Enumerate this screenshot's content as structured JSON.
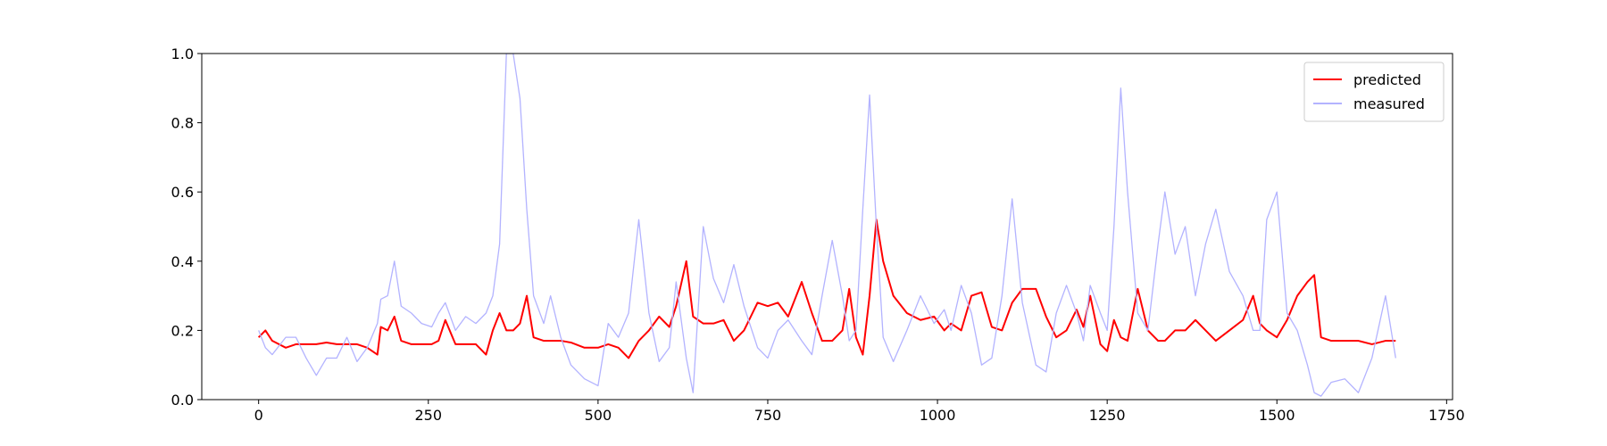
{
  "chart_data": {
    "type": "line",
    "x": [
      0,
      10,
      20,
      40,
      55,
      70,
      85,
      100,
      115,
      130,
      145,
      160,
      175,
      180,
      190,
      200,
      210,
      225,
      240,
      255,
      265,
      275,
      290,
      305,
      320,
      335,
      345,
      355,
      365,
      375,
      385,
      395,
      405,
      420,
      430,
      445,
      460,
      480,
      500,
      515,
      530,
      545,
      560,
      575,
      590,
      605,
      615,
      630,
      640,
      655,
      670,
      685,
      700,
      715,
      735,
      750,
      765,
      780,
      800,
      815,
      830,
      845,
      860,
      870,
      880,
      890,
      900,
      910,
      920,
      935,
      955,
      975,
      995,
      1010,
      1020,
      1035,
      1050,
      1065,
      1080,
      1095,
      1110,
      1125,
      1145,
      1160,
      1175,
      1190,
      1205,
      1215,
      1225,
      1240,
      1250,
      1260,
      1270,
      1280,
      1295,
      1310,
      1325,
      1335,
      1350,
      1365,
      1380,
      1395,
      1410,
      1430,
      1450,
      1465,
      1475,
      1485,
      1500,
      1515,
      1530,
      1545,
      1555,
      1565,
      1580,
      1600,
      1620,
      1640,
      1660,
      1675
    ],
    "series": [
      {
        "name": "predicted",
        "color": "#ff0000",
        "values": [
          0.18,
          0.2,
          0.17,
          0.15,
          0.16,
          0.16,
          0.16,
          0.165,
          0.16,
          0.16,
          0.16,
          0.15,
          0.13,
          0.21,
          0.2,
          0.24,
          0.17,
          0.16,
          0.16,
          0.16,
          0.17,
          0.23,
          0.16,
          0.16,
          0.16,
          0.13,
          0.2,
          0.25,
          0.2,
          0.2,
          0.22,
          0.3,
          0.18,
          0.17,
          0.17,
          0.17,
          0.165,
          0.15,
          0.15,
          0.16,
          0.15,
          0.12,
          0.17,
          0.2,
          0.24,
          0.21,
          0.27,
          0.4,
          0.24,
          0.22,
          0.22,
          0.23,
          0.17,
          0.2,
          0.28,
          0.27,
          0.28,
          0.24,
          0.34,
          0.25,
          0.17,
          0.17,
          0.2,
          0.32,
          0.18,
          0.13,
          0.3,
          0.52,
          0.4,
          0.3,
          0.25,
          0.23,
          0.24,
          0.2,
          0.22,
          0.2,
          0.3,
          0.31,
          0.21,
          0.2,
          0.28,
          0.32,
          0.32,
          0.24,
          0.18,
          0.2,
          0.26,
          0.21,
          0.3,
          0.16,
          0.14,
          0.23,
          0.18,
          0.17,
          0.32,
          0.2,
          0.17,
          0.17,
          0.2,
          0.2,
          0.23,
          0.2,
          0.17,
          0.2,
          0.23,
          0.3,
          0.22,
          0.2,
          0.18,
          0.23,
          0.3,
          0.34,
          0.36,
          0.18,
          0.17,
          0.17,
          0.17,
          0.16,
          0.17,
          0.17
        ]
      },
      {
        "name": "measured",
        "color": "#b3b3ff",
        "values": [
          0.2,
          0.15,
          0.13,
          0.18,
          0.18,
          0.12,
          0.07,
          0.12,
          0.12,
          0.18,
          0.11,
          0.15,
          0.22,
          0.29,
          0.3,
          0.4,
          0.27,
          0.25,
          0.22,
          0.21,
          0.25,
          0.28,
          0.2,
          0.24,
          0.22,
          0.25,
          0.3,
          0.45,
          1.0,
          1.0,
          0.87,
          0.55,
          0.3,
          0.22,
          0.3,
          0.18,
          0.1,
          0.06,
          0.04,
          0.22,
          0.18,
          0.25,
          0.52,
          0.25,
          0.11,
          0.15,
          0.34,
          0.12,
          0.02,
          0.5,
          0.35,
          0.28,
          0.39,
          0.27,
          0.15,
          0.12,
          0.2,
          0.23,
          0.17,
          0.13,
          0.3,
          0.46,
          0.3,
          0.17,
          0.2,
          0.55,
          0.88,
          0.5,
          0.18,
          0.11,
          0.2,
          0.3,
          0.22,
          0.26,
          0.2,
          0.33,
          0.25,
          0.1,
          0.12,
          0.3,
          0.58,
          0.28,
          0.1,
          0.08,
          0.25,
          0.33,
          0.25,
          0.17,
          0.33,
          0.25,
          0.2,
          0.5,
          0.9,
          0.6,
          0.25,
          0.2,
          0.45,
          0.6,
          0.42,
          0.5,
          0.3,
          0.45,
          0.55,
          0.37,
          0.3,
          0.2,
          0.2,
          0.52,
          0.6,
          0.25,
          0.2,
          0.1,
          0.02,
          0.01,
          0.05,
          0.06,
          0.02,
          0.12,
          0.3,
          0.12
        ]
      }
    ],
    "xlim": [
      -83.75,
      1758.75
    ],
    "xticks": [
      0,
      250,
      500,
      750,
      1000,
      1250,
      1500,
      1750
    ],
    "ylim": [
      0,
      1
    ],
    "yticks": [
      {
        "value": 0,
        "label": "0.0"
      },
      0.2,
      0.4,
      0.6,
      0.8,
      {
        "value": 1,
        "label": "1.0"
      }
    ],
    "legend": "upper right"
  }
}
